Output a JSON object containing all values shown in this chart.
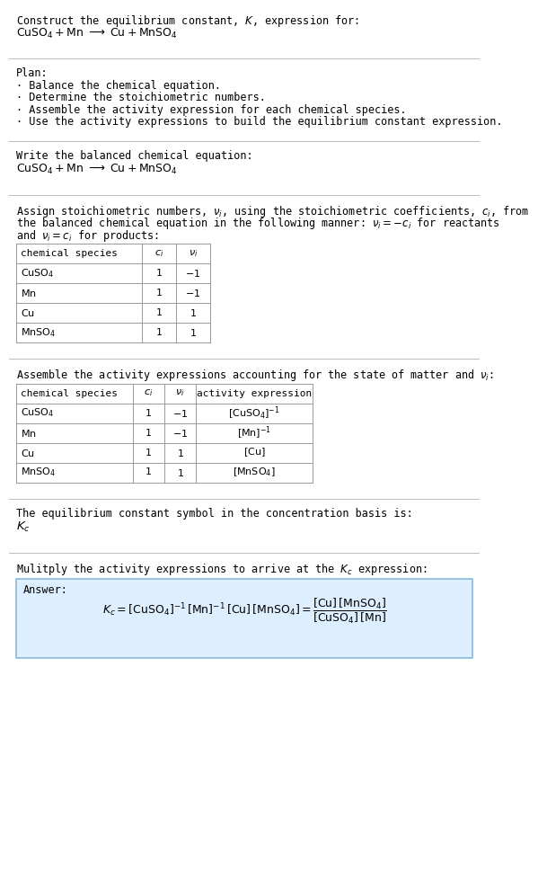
{
  "title_line1": "Construct the equilibrium constant, $K$, expression for:",
  "title_line2": "$\\mathrm{CuSO_4 + Mn \\;\\longrightarrow\\; Cu + MnSO_4}$",
  "plan_header": "Plan:",
  "plan_bullets": [
    "\\u00b7 Balance the chemical equation.",
    "\\u00b7 Determine the stoichiometric numbers.",
    "\\u00b7 Assemble the activity expression for each chemical species.",
    "\\u00b7 Use the activity expressions to build the equilibrium constant expression."
  ],
  "balanced_eq_header": "Write the balanced chemical equation:",
  "balanced_eq": "$\\mathrm{CuSO_4 + Mn \\;\\longrightarrow\\; Cu + MnSO_4}$",
  "stoich_text1": "Assign stoichiometric numbers, $\\nu_i$, using the stoichiometric coefficients, $c_i$, from",
  "stoich_text2": "the balanced chemical equation in the following manner: $\\nu_i = -c_i$ for reactants",
  "stoich_text3": "and $\\nu_i = c_i$ for products:",
  "table1_headers": [
    "chemical species",
    "$c_i$",
    "$\\nu_i$"
  ],
  "table1_rows": [
    [
      "$\\mathrm{CuSO_4}$",
      "1",
      "$-1$"
    ],
    [
      "$\\mathrm{Mn}$",
      "1",
      "$-1$"
    ],
    [
      "$\\mathrm{Cu}$",
      "1",
      "$1$"
    ],
    [
      "$\\mathrm{MnSO_4}$",
      "1",
      "$1$"
    ]
  ],
  "activity_header": "Assemble the activity expressions accounting for the state of matter and $\\nu_i$:",
  "table2_headers": [
    "chemical species",
    "$c_i$",
    "$\\nu_i$",
    "activity expression"
  ],
  "table2_rows": [
    [
      "$\\mathrm{CuSO_4}$",
      "1",
      "$-1$",
      "$[\\mathrm{CuSO_4}]^{-1}$"
    ],
    [
      "$\\mathrm{Mn}$",
      "1",
      "$-1$",
      "$[\\mathrm{Mn}]^{-1}$"
    ],
    [
      "$\\mathrm{Cu}$",
      "1",
      "$1$",
      "$[\\mathrm{Cu}]$"
    ],
    [
      "$\\mathrm{MnSO_4}$",
      "1",
      "$1$",
      "$[\\mathrm{MnSO_4}]$"
    ]
  ],
  "kc_symbol_text": "The equilibrium constant symbol in the concentration basis is:",
  "kc_symbol": "$K_c$",
  "multiply_text": "Mulitply the activity expressions to arrive at the $K_c$ expression:",
  "answer_label": "Answer:",
  "bg_color": "#ffffff",
  "text_color": "#000000",
  "table_border_color": "#999999",
  "answer_box_facecolor": "#ddeeff",
  "answer_box_edgecolor": "#88bbdd",
  "separator_color": "#bbbbbb",
  "font_size": 8.5,
  "mono_font": "DejaVu Sans Mono"
}
